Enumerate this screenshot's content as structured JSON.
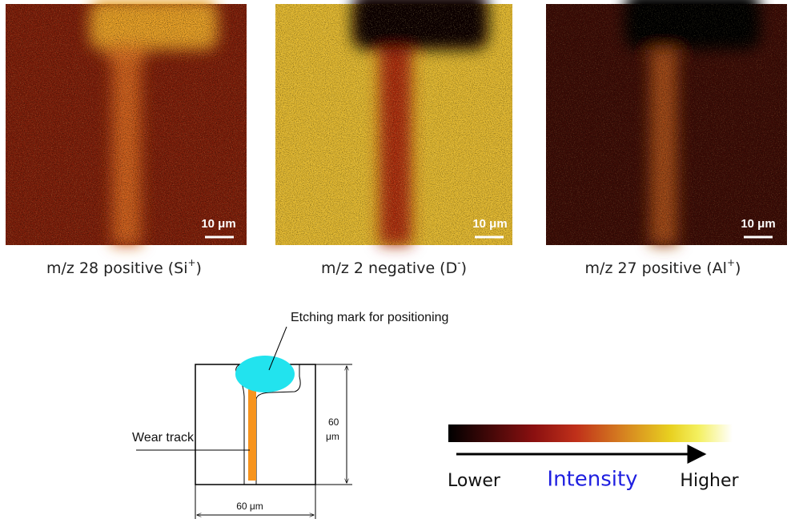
{
  "panels": [
    {
      "scale": "10 μm",
      "caption": {
        "text": "m/z 28 positive (Si",
        "sup": "+",
        "end": ")"
      }
    },
    {
      "scale": "10 μm",
      "caption": {
        "text": "m/z 2 negative (D",
        "sup": "-",
        "end": ")"
      }
    },
    {
      "scale": "10 μm",
      "caption": {
        "text": "m/z 27 positive (Al",
        "sup": "+",
        "end": ")"
      }
    }
  ],
  "diagram": {
    "etching_label": "Etching mark for positioning",
    "wear_label": "Wear track",
    "height_value": "60",
    "height_unit": "μm",
    "width_label": "60 μm"
  },
  "legend": {
    "low": "Lower",
    "title": "Intensity",
    "high": "Higher"
  }
}
